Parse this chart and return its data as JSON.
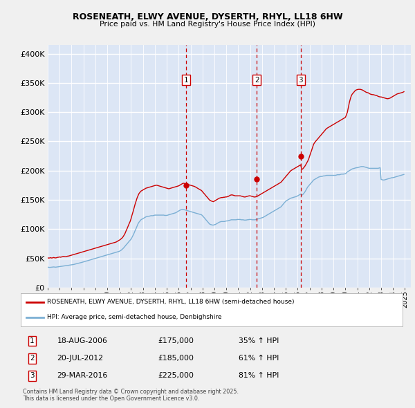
{
  "title1": "ROSENEATH, ELWY AVENUE, DYSERTH, RHYL, LL18 6HW",
  "title2": "Price paid vs. HM Land Registry's House Price Index (HPI)",
  "ytick_values": [
    0,
    50000,
    100000,
    150000,
    200000,
    250000,
    300000,
    350000,
    400000
  ],
  "ylim": [
    0,
    415000
  ],
  "xlim_start": 1995.0,
  "xlim_end": 2025.5,
  "fig_bg": "#f0f0f0",
  "plot_bg": "#dce6f5",
  "grid_color": "#ffffff",
  "red_color": "#cc0000",
  "blue_color": "#7bafd4",
  "legend_label_red": "ROSENEATH, ELWY AVENUE, DYSERTH, RHYL, LL18 6HW (semi-detached house)",
  "legend_label_blue": "HPI: Average price, semi-detached house, Denbighshire",
  "sale_markers": [
    {
      "num": 1,
      "year": 2006.63,
      "price": 175000,
      "date": "18-AUG-2006",
      "pct": "35%"
    },
    {
      "num": 2,
      "year": 2012.55,
      "price": 185000,
      "date": "20-JUL-2012",
      "pct": "61%"
    },
    {
      "num": 3,
      "year": 2016.24,
      "price": 225000,
      "date": "29-MAR-2016",
      "pct": "81%"
    }
  ],
  "footnote": "Contains HM Land Registry data © Crown copyright and database right 2025.\nThis data is licensed under the Open Government Licence v3.0.",
  "red_years": [
    1995.0,
    1995.08,
    1995.17,
    1995.25,
    1995.33,
    1995.42,
    1995.5,
    1995.58,
    1995.67,
    1995.75,
    1995.83,
    1995.92,
    1996.0,
    1996.08,
    1996.17,
    1996.25,
    1996.33,
    1996.42,
    1996.5,
    1996.58,
    1996.67,
    1996.75,
    1996.83,
    1996.92,
    1997.0,
    1997.08,
    1997.17,
    1997.25,
    1997.33,
    1997.42,
    1997.5,
    1997.58,
    1997.67,
    1997.75,
    1997.83,
    1997.92,
    1998.0,
    1998.08,
    1998.17,
    1998.25,
    1998.33,
    1998.42,
    1998.5,
    1998.58,
    1998.67,
    1998.75,
    1998.83,
    1998.92,
    1999.0,
    1999.08,
    1999.17,
    1999.25,
    1999.33,
    1999.42,
    1999.5,
    1999.58,
    1999.67,
    1999.75,
    1999.83,
    1999.92,
    2000.0,
    2000.08,
    2000.17,
    2000.25,
    2000.33,
    2000.42,
    2000.5,
    2000.58,
    2000.67,
    2000.75,
    2000.83,
    2000.92,
    2001.0,
    2001.08,
    2001.17,
    2001.25,
    2001.33,
    2001.42,
    2001.5,
    2001.58,
    2001.67,
    2001.75,
    2001.83,
    2001.92,
    2002.0,
    2002.08,
    2002.17,
    2002.25,
    2002.33,
    2002.42,
    2002.5,
    2002.58,
    2002.67,
    2002.75,
    2002.83,
    2002.92,
    2003.0,
    2003.08,
    2003.17,
    2003.25,
    2003.33,
    2003.42,
    2003.5,
    2003.58,
    2003.67,
    2003.75,
    2003.83,
    2003.92,
    2004.0,
    2004.08,
    2004.17,
    2004.25,
    2004.33,
    2004.42,
    2004.5,
    2004.58,
    2004.67,
    2004.75,
    2004.83,
    2004.92,
    2005.0,
    2005.08,
    2005.17,
    2005.25,
    2005.33,
    2005.42,
    2005.5,
    2005.58,
    2005.67,
    2005.75,
    2005.83,
    2005.92,
    2006.0,
    2006.08,
    2006.17,
    2006.25,
    2006.33,
    2006.42,
    2006.5,
    2006.58,
    2006.67,
    2006.75,
    2006.83,
    2006.92,
    2007.0,
    2007.08,
    2007.17,
    2007.25,
    2007.33,
    2007.42,
    2007.5,
    2007.58,
    2007.67,
    2007.75,
    2007.83,
    2007.92,
    2008.0,
    2008.08,
    2008.17,
    2008.25,
    2008.33,
    2008.42,
    2008.5,
    2008.58,
    2008.67,
    2008.75,
    2008.83,
    2008.92,
    2009.0,
    2009.08,
    2009.17,
    2009.25,
    2009.33,
    2009.42,
    2009.5,
    2009.58,
    2009.67,
    2009.75,
    2009.83,
    2009.92,
    2010.0,
    2010.08,
    2010.17,
    2010.25,
    2010.33,
    2010.42,
    2010.5,
    2010.58,
    2010.67,
    2010.75,
    2010.83,
    2010.92,
    2011.0,
    2011.08,
    2011.17,
    2011.25,
    2011.33,
    2011.42,
    2011.5,
    2011.58,
    2011.67,
    2011.75,
    2011.83,
    2011.92,
    2012.0,
    2012.08,
    2012.17,
    2012.25,
    2012.33,
    2012.42,
    2012.5,
    2012.58,
    2012.67,
    2012.75,
    2012.83,
    2012.92,
    2013.0,
    2013.08,
    2013.17,
    2013.25,
    2013.33,
    2013.42,
    2013.5,
    2013.58,
    2013.67,
    2013.75,
    2013.83,
    2013.92,
    2014.0,
    2014.08,
    2014.17,
    2014.25,
    2014.33,
    2014.42,
    2014.5,
    2014.58,
    2014.67,
    2014.75,
    2014.83,
    2014.92,
    2015.0,
    2015.08,
    2015.17,
    2015.25,
    2015.33,
    2015.42,
    2015.5,
    2015.58,
    2015.67,
    2015.75,
    2015.83,
    2015.92,
    2016.0,
    2016.08,
    2016.17,
    2016.25,
    2016.33,
    2016.42,
    2016.5,
    2016.58,
    2016.67,
    2016.75,
    2016.83,
    2016.92,
    2017.0,
    2017.08,
    2017.17,
    2017.25,
    2017.33,
    2017.42,
    2017.5,
    2017.58,
    2017.67,
    2017.75,
    2017.83,
    2017.92,
    2018.0,
    2018.08,
    2018.17,
    2018.25,
    2018.33,
    2018.42,
    2018.5,
    2018.58,
    2018.67,
    2018.75,
    2018.83,
    2018.92,
    2019.0,
    2019.08,
    2019.17,
    2019.25,
    2019.33,
    2019.42,
    2019.5,
    2019.58,
    2019.67,
    2019.75,
    2019.83,
    2019.92,
    2020.0,
    2020.08,
    2020.17,
    2020.25,
    2020.33,
    2020.42,
    2020.5,
    2020.58,
    2020.67,
    2020.75,
    2020.83,
    2020.92,
    2021.0,
    2021.08,
    2021.17,
    2021.25,
    2021.33,
    2021.42,
    2021.5,
    2021.58,
    2021.67,
    2021.75,
    2021.83,
    2021.92,
    2022.0,
    2022.08,
    2022.17,
    2022.25,
    2022.33,
    2022.42,
    2022.5,
    2022.58,
    2022.67,
    2022.75,
    2022.83,
    2022.92,
    2023.0,
    2023.08,
    2023.17,
    2023.25,
    2023.33,
    2023.42,
    2023.5,
    2023.58,
    2023.67,
    2023.75,
    2023.83,
    2023.92,
    2024.0,
    2024.08,
    2024.17,
    2024.25,
    2024.33,
    2024.42,
    2024.5,
    2024.58,
    2024.67,
    2024.75,
    2024.83,
    2024.92
  ],
  "red_vals": [
    51000,
    50500,
    50800,
    51200,
    50600,
    51000,
    51500,
    51000,
    50800,
    51200,
    51800,
    52000,
    52500,
    52000,
    52500,
    53000,
    53500,
    53000,
    52800,
    53200,
    53800,
    54000,
    54500,
    55000,
    55500,
    56000,
    56500,
    57000,
    57500,
    58000,
    58500,
    59000,
    59500,
    60000,
    60500,
    61000,
    61500,
    62000,
    62500,
    63000,
    63500,
    64000,
    64500,
    65000,
    65500,
    66000,
    66500,
    67000,
    67500,
    68000,
    68500,
    69000,
    69500,
    70000,
    70500,
    71000,
    71500,
    72000,
    72500,
    73000,
    73500,
    74000,
    74500,
    75000,
    75500,
    76000,
    76500,
    77000,
    77500,
    78000,
    79000,
    80000,
    81000,
    82000,
    83500,
    85000,
    87000,
    90000,
    93000,
    97000,
    101000,
    105000,
    109000,
    113000,
    118000,
    124000,
    130000,
    136000,
    142000,
    148000,
    153000,
    157000,
    161000,
    163000,
    165000,
    166000,
    167000,
    168000,
    169000,
    170000,
    170500,
    171000,
    171500,
    172000,
    172500,
    173000,
    173500,
    174000,
    174500,
    175000,
    175000,
    174500,
    174000,
    173500,
    173000,
    172500,
    172000,
    171500,
    171000,
    170500,
    170000,
    169500,
    169000,
    169500,
    170000,
    170500,
    171000,
    171500,
    172000,
    172500,
    173000,
    173500,
    174000,
    175000,
    176000,
    177000,
    178000,
    178500,
    178000,
    177500,
    177000,
    176500,
    176000,
    175500,
    175000,
    174500,
    174000,
    173500,
    173000,
    172000,
    171000,
    170000,
    169000,
    168000,
    167000,
    166000,
    164000,
    162000,
    160000,
    158000,
    156000,
    154000,
    152000,
    150000,
    149000,
    148000,
    147500,
    147000,
    148000,
    149000,
    150000,
    151000,
    152000,
    153000,
    153500,
    154000,
    154000,
    154500,
    154500,
    155000,
    155000,
    155500,
    156000,
    157000,
    158000,
    158500,
    158500,
    158000,
    157500,
    157000,
    157000,
    157000,
    157000,
    157000,
    157000,
    156500,
    156000,
    155500,
    155000,
    155000,
    155500,
    156000,
    156500,
    157000,
    157000,
    156500,
    156000,
    155500,
    155000,
    155000,
    155500,
    156000,
    157000,
    158000,
    159000,
    160000,
    161000,
    162000,
    163000,
    164000,
    165000,
    166000,
    167000,
    168000,
    169000,
    170000,
    171000,
    172000,
    173000,
    174000,
    175000,
    176000,
    177000,
    178000,
    179000,
    180000,
    182000,
    184000,
    186000,
    188000,
    190000,
    192000,
    194000,
    196000,
    198000,
    200000,
    201000,
    202000,
    203000,
    204000,
    205000,
    206000,
    207000,
    208000,
    209000,
    210000,
    202000,
    203000,
    205000,
    207000,
    210000,
    213000,
    216000,
    220000,
    225000,
    230000,
    235000,
    240000,
    245000,
    248000,
    250000,
    252000,
    254000,
    256000,
    258000,
    260000,
    262000,
    264000,
    266000,
    268000,
    270000,
    272000,
    273000,
    274000,
    275000,
    276000,
    277000,
    278000,
    279000,
    280000,
    281000,
    282000,
    283000,
    284000,
    285000,
    286000,
    287000,
    288000,
    289000,
    290000,
    291000,
    295000,
    300000,
    308000,
    316000,
    323000,
    328000,
    331000,
    333000,
    335000,
    337000,
    338000,
    338500,
    339000,
    339000,
    339000,
    338500,
    338000,
    337000,
    336000,
    335000,
    334000,
    333500,
    333000,
    332000,
    331000,
    330500,
    330000,
    330000,
    329500,
    329000,
    328500,
    328000,
    327000,
    326500,
    326000,
    326000,
    325500,
    325000,
    324500,
    324000,
    323500,
    323000,
    323000,
    323500,
    324000,
    325000,
    326000,
    327000,
    328000,
    329000,
    330000,
    331000,
    331500,
    332000,
    332500,
    333000,
    333500,
    334000,
    335000
  ],
  "blue_years": [
    1995.0,
    1995.08,
    1995.17,
    1995.25,
    1995.33,
    1995.42,
    1995.5,
    1995.58,
    1995.67,
    1995.75,
    1995.83,
    1995.92,
    1996.0,
    1996.08,
    1996.17,
    1996.25,
    1996.33,
    1996.42,
    1996.5,
    1996.58,
    1996.67,
    1996.75,
    1996.83,
    1996.92,
    1997.0,
    1997.08,
    1997.17,
    1997.25,
    1997.33,
    1997.42,
    1997.5,
    1997.58,
    1997.67,
    1997.75,
    1997.83,
    1997.92,
    1998.0,
    1998.08,
    1998.17,
    1998.25,
    1998.33,
    1998.42,
    1998.5,
    1998.58,
    1998.67,
    1998.75,
    1998.83,
    1998.92,
    1999.0,
    1999.08,
    1999.17,
    1999.25,
    1999.33,
    1999.42,
    1999.5,
    1999.58,
    1999.67,
    1999.75,
    1999.83,
    1999.92,
    2000.0,
    2000.08,
    2000.17,
    2000.25,
    2000.33,
    2000.42,
    2000.5,
    2000.58,
    2000.67,
    2000.75,
    2000.83,
    2000.92,
    2001.0,
    2001.08,
    2001.17,
    2001.25,
    2001.33,
    2001.42,
    2001.5,
    2001.58,
    2001.67,
    2001.75,
    2001.83,
    2001.92,
    2002.0,
    2002.08,
    2002.17,
    2002.25,
    2002.33,
    2002.42,
    2002.5,
    2002.58,
    2002.67,
    2002.75,
    2002.83,
    2002.92,
    2003.0,
    2003.08,
    2003.17,
    2003.25,
    2003.33,
    2003.42,
    2003.5,
    2003.58,
    2003.67,
    2003.75,
    2003.83,
    2003.92,
    2004.0,
    2004.08,
    2004.17,
    2004.25,
    2004.33,
    2004.42,
    2004.5,
    2004.58,
    2004.67,
    2004.75,
    2004.83,
    2004.92,
    2005.0,
    2005.08,
    2005.17,
    2005.25,
    2005.33,
    2005.42,
    2005.5,
    2005.58,
    2005.67,
    2005.75,
    2005.83,
    2005.92,
    2006.0,
    2006.08,
    2006.17,
    2006.25,
    2006.33,
    2006.42,
    2006.5,
    2006.58,
    2006.67,
    2006.75,
    2006.83,
    2006.92,
    2007.0,
    2007.08,
    2007.17,
    2007.25,
    2007.33,
    2007.42,
    2007.5,
    2007.58,
    2007.67,
    2007.75,
    2007.83,
    2007.92,
    2008.0,
    2008.08,
    2008.17,
    2008.25,
    2008.33,
    2008.42,
    2008.5,
    2008.58,
    2008.67,
    2008.75,
    2008.83,
    2008.92,
    2009.0,
    2009.08,
    2009.17,
    2009.25,
    2009.33,
    2009.42,
    2009.5,
    2009.58,
    2009.67,
    2009.75,
    2009.83,
    2009.92,
    2010.0,
    2010.08,
    2010.17,
    2010.25,
    2010.33,
    2010.42,
    2010.5,
    2010.58,
    2010.67,
    2010.75,
    2010.83,
    2010.92,
    2011.0,
    2011.08,
    2011.17,
    2011.25,
    2011.33,
    2011.42,
    2011.5,
    2011.58,
    2011.67,
    2011.75,
    2011.83,
    2011.92,
    2012.0,
    2012.08,
    2012.17,
    2012.25,
    2012.33,
    2012.42,
    2012.5,
    2012.58,
    2012.67,
    2012.75,
    2012.83,
    2012.92,
    2013.0,
    2013.08,
    2013.17,
    2013.25,
    2013.33,
    2013.42,
    2013.5,
    2013.58,
    2013.67,
    2013.75,
    2013.83,
    2013.92,
    2014.0,
    2014.08,
    2014.17,
    2014.25,
    2014.33,
    2014.42,
    2014.5,
    2014.58,
    2014.67,
    2014.75,
    2014.83,
    2014.92,
    2015.0,
    2015.08,
    2015.17,
    2015.25,
    2015.33,
    2015.42,
    2015.5,
    2015.58,
    2015.67,
    2015.75,
    2015.83,
    2015.92,
    2016.0,
    2016.08,
    2016.17,
    2016.25,
    2016.33,
    2016.42,
    2016.5,
    2016.58,
    2016.67,
    2016.75,
    2016.83,
    2016.92,
    2017.0,
    2017.08,
    2017.17,
    2017.25,
    2017.33,
    2017.42,
    2017.5,
    2017.58,
    2017.67,
    2017.75,
    2017.83,
    2017.92,
    2018.0,
    2018.08,
    2018.17,
    2018.25,
    2018.33,
    2018.42,
    2018.5,
    2018.58,
    2018.67,
    2018.75,
    2018.83,
    2018.92,
    2019.0,
    2019.08,
    2019.17,
    2019.25,
    2019.33,
    2019.42,
    2019.5,
    2019.58,
    2019.67,
    2019.75,
    2019.83,
    2019.92,
    2020.0,
    2020.08,
    2020.17,
    2020.25,
    2020.33,
    2020.42,
    2020.5,
    2020.58,
    2020.67,
    2020.75,
    2020.83,
    2020.92,
    2021.0,
    2021.08,
    2021.17,
    2021.25,
    2021.33,
    2021.42,
    2021.5,
    2021.58,
    2021.67,
    2021.75,
    2021.83,
    2021.92,
    2022.0,
    2022.08,
    2022.17,
    2022.25,
    2022.33,
    2022.42,
    2022.5,
    2022.58,
    2022.67,
    2022.75,
    2022.83,
    2022.92,
    2023.0,
    2023.08,
    2023.17,
    2023.25,
    2023.33,
    2023.42,
    2023.5,
    2023.58,
    2023.67,
    2023.75,
    2023.83,
    2023.92,
    2024.0,
    2024.08,
    2024.17,
    2024.25,
    2024.33,
    2024.42,
    2024.5,
    2024.58,
    2024.67,
    2024.75,
    2024.83,
    2024.92
  ],
  "blue_vals": [
    35000,
    34800,
    34600,
    34800,
    35000,
    35200,
    35400,
    35200,
    35000,
    35200,
    35500,
    35800,
    36000,
    36200,
    36500,
    36800,
    37000,
    37200,
    37500,
    37800,
    38000,
    38200,
    38500,
    38800,
    39000,
    39300,
    39600,
    40000,
    40400,
    40800,
    41200,
    41600,
    42000,
    42500,
    43000,
    43500,
    44000,
    44500,
    45000,
    45500,
    46000,
    46500,
    47000,
    47500,
    48000,
    48500,
    49000,
    49500,
    50000,
    50500,
    51000,
    51500,
    52000,
    52500,
    53000,
    53500,
    54000,
    54500,
    55000,
    55500,
    56000,
    56500,
    57000,
    57500,
    58000,
    58500,
    59000,
    59500,
    60000,
    60500,
    61000,
    61500,
    62000,
    63000,
    64000,
    65500,
    67000,
    69000,
    71000,
    73000,
    75000,
    77000,
    79000,
    81000,
    83000,
    86000,
    89500,
    93000,
    97000,
    101000,
    105000,
    109000,
    112000,
    114000,
    116000,
    117000,
    118000,
    119000,
    120000,
    121000,
    121500,
    122000,
    122000,
    122500,
    123000,
    123000,
    123000,
    123500,
    124000,
    124000,
    124000,
    124000,
    124000,
    124000,
    124000,
    124000,
    124000,
    124000,
    123500,
    123500,
    123500,
    124000,
    124500,
    125000,
    125500,
    126000,
    126500,
    127000,
    127500,
    128000,
    129000,
    130000,
    131000,
    132000,
    133000,
    133500,
    134000,
    133500,
    133000,
    132500,
    132000,
    131500,
    131000,
    130500,
    130000,
    129500,
    129000,
    128500,
    128000,
    127500,
    127000,
    126500,
    126000,
    125500,
    125000,
    124500,
    123000,
    121000,
    119000,
    117000,
    115000,
    113000,
    111000,
    109000,
    108000,
    107500,
    107000,
    107000,
    107500,
    108000,
    109000,
    110000,
    111000,
    112000,
    112500,
    113000,
    113000,
    113000,
    113000,
    113500,
    114000,
    114000,
    114500,
    115000,
    115500,
    116000,
    116000,
    116000,
    116000,
    116000,
    116000,
    116500,
    116500,
    116500,
    116500,
    116000,
    116000,
    116000,
    115500,
    115500,
    115500,
    116000,
    116000,
    116500,
    116500,
    116500,
    116000,
    116000,
    116000,
    116000,
    116500,
    117000,
    117500,
    118000,
    118500,
    119000,
    119500,
    120000,
    121000,
    122000,
    123000,
    124000,
    125000,
    126000,
    127000,
    128000,
    129000,
    130000,
    131000,
    132000,
    133000,
    134000,
    135000,
    136000,
    137000,
    138000,
    140000,
    142000,
    144000,
    146000,
    148000,
    149000,
    150000,
    151000,
    152000,
    153000,
    153500,
    154000,
    154500,
    155000,
    155500,
    156000,
    157000,
    158000,
    159000,
    160000,
    158000,
    159000,
    161000,
    163000,
    166000,
    169000,
    172000,
    174000,
    176000,
    178000,
    180000,
    182000,
    184000,
    185000,
    186000,
    187000,
    188000,
    189000,
    189500,
    190000,
    190000,
    190500,
    191000,
    191000,
    191500,
    192000,
    192000,
    192000,
    192000,
    192000,
    192000,
    192000,
    192000,
    192000,
    192000,
    192500,
    193000,
    193000,
    193000,
    193500,
    194000,
    194000,
    194000,
    194500,
    194500,
    196000,
    198000,
    199000,
    200000,
    201000,
    202000,
    203000,
    203500,
    204000,
    204500,
    205000,
    205000,
    205500,
    206000,
    206500,
    207000,
    207000,
    207000,
    206500,
    206000,
    205500,
    205000,
    204500,
    204000,
    204000,
    204000,
    204000,
    204000,
    204000,
    204000,
    204000,
    204000,
    204000,
    204500,
    205000,
    185000,
    184500,
    184000,
    184000,
    184500,
    185000,
    185500,
    186000,
    186500,
    187000,
    187500,
    188000,
    188000,
    188500,
    189000,
    189500,
    190000,
    190500,
    191000,
    191500,
    192000,
    192500,
    193000,
    193500
  ]
}
